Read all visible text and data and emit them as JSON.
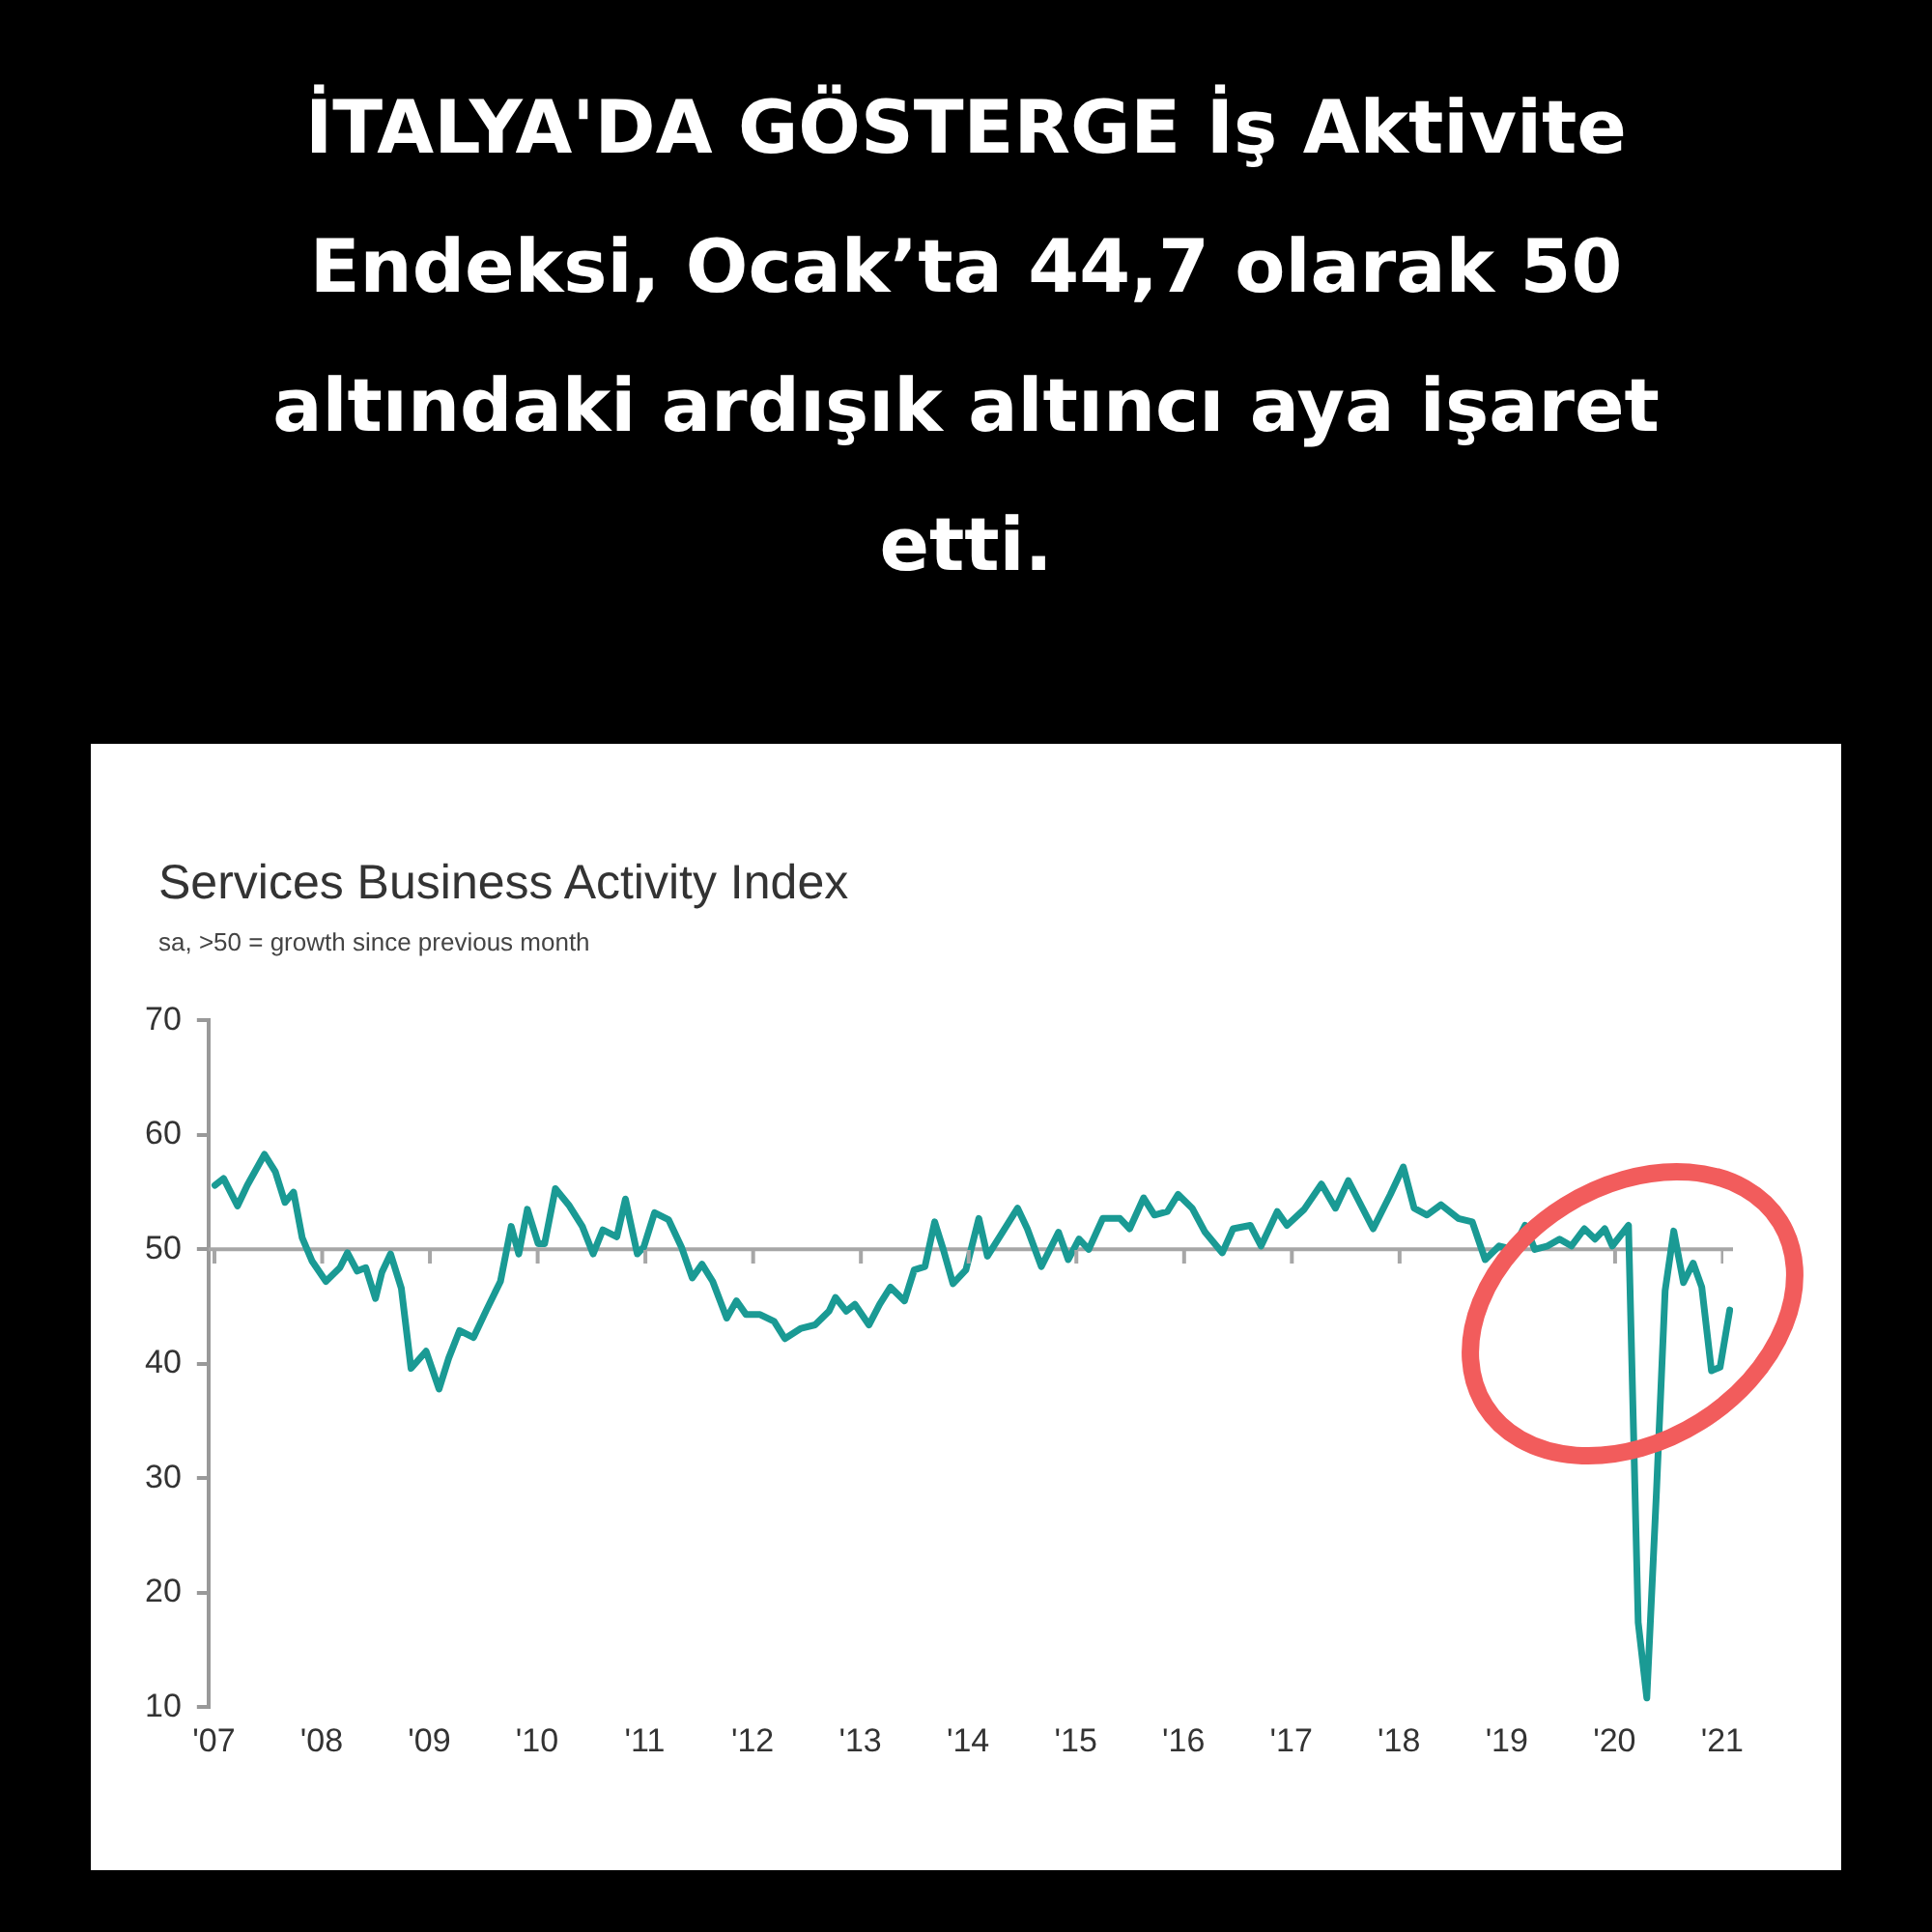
{
  "chart_data": {
    "type": "line",
    "title": "Services Business Activity Index",
    "subtitle": "sa, >50 = growth since previous month",
    "annotations": [
      "İTALYA'DA GÖSTERGE İş Aktivite Endeksi, Ocak’ta 44,7 olarak 50 altındaki ardışık altıncı aya işaret etti."
    ],
    "x": [
      2007.01,
      2007.09,
      2007.22,
      2007.31,
      2007.47,
      2007.57,
      2007.66,
      2007.74,
      2007.82,
      2007.91,
      2008.04,
      2008.17,
      2008.24,
      2008.33,
      2008.41,
      2008.5,
      2008.56,
      2008.64,
      2008.74,
      2008.83,
      2008.97,
      2009.09,
      2009.18,
      2009.28,
      2009.41,
      2009.53,
      2009.66,
      2009.76,
      2009.83,
      2009.91,
      2010.01,
      2010.07,
      2010.17,
      2010.3,
      2010.42,
      2010.52,
      2010.61,
      2010.74,
      2010.82,
      2010.93,
      2010.99,
      2011.09,
      2011.22,
      2011.34,
      2011.44,
      2011.53,
      2011.63,
      2011.76,
      2011.85,
      2011.94,
      2012.07,
      2012.2,
      2012.3,
      2012.45,
      2012.58,
      2012.71,
      2012.77,
      2012.87,
      2012.95,
      2013.08,
      2013.18,
      2013.28,
      2013.41,
      2013.5,
      2013.6,
      2013.69,
      2013.77,
      2013.86,
      2013.98,
      2014.1,
      2014.18,
      2014.3,
      2014.46,
      2014.55,
      2014.68,
      2014.84,
      2014.93,
      2015.03,
      2015.12,
      2015.25,
      2015.41,
      2015.5,
      2015.63,
      2015.73,
      2015.85,
      2015.95,
      2016.08,
      2016.2,
      2016.36,
      2016.46,
      2016.62,
      2016.72,
      2016.87,
      2016.96,
      2017.12,
      2017.28,
      2017.41,
      2017.53,
      2017.76,
      2017.92,
      2018.04,
      2018.14,
      2018.26,
      2018.39,
      2018.55,
      2018.68,
      2018.8,
      2018.93,
      2019.06,
      2019.17,
      2019.26,
      2019.38,
      2019.49,
      2019.6,
      2019.72,
      2019.82,
      2019.91,
      2019.98,
      2020.13,
      2020.22,
      2020.3,
      2020.39,
      2020.47,
      2020.55,
      2020.64,
      2020.73,
      2020.81,
      2020.9,
      2020.98,
      2021.07
    ],
    "series": [
      {
        "color": "#1a9a94",
        "values": [
          55.6,
          56.2,
          53.8,
          55.6,
          58.3,
          56.8,
          54.1,
          55,
          51,
          49,
          47.2,
          48.4,
          49.7,
          48.1,
          48.4,
          45.7,
          48,
          49.6,
          46.6,
          39.6,
          41.1,
          37.8,
          40.5,
          42.9,
          42.3,
          44.7,
          47.2,
          52,
          49.6,
          53.5,
          50.5,
          50.5,
          55.3,
          53.8,
          52,
          49.6,
          51.7,
          51.1,
          54.4,
          49.6,
          50.2,
          53.2,
          52.6,
          50.2,
          47.5,
          48.7,
          47.2,
          44,
          45.5,
          44.3,
          44.3,
          43.7,
          42.2,
          43.1,
          43.4,
          44.6,
          45.8,
          44.6,
          45.2,
          43.4,
          45.2,
          46.7,
          45.5,
          48.2,
          48.5,
          52.4,
          50,
          47,
          48.2,
          52.7,
          49.4,
          51.2,
          53.6,
          51.8,
          48.5,
          51.5,
          49.1,
          50.9,
          50,
          52.7,
          52.7,
          51.8,
          54.5,
          53,
          53.3,
          54.8,
          53.6,
          51.5,
          49.7,
          51.8,
          52.1,
          50.3,
          53.3,
          52.1,
          53.5,
          55.7,
          53.6,
          56,
          51.8,
          54.8,
          57.2,
          53.6,
          53,
          53.9,
          52.7,
          52.4,
          49.1,
          50.3,
          50,
          52.1,
          50,
          50.3,
          50.9,
          50.3,
          51.8,
          50.9,
          51.8,
          50.3,
          52.1,
          17.4,
          10.8,
          28.9,
          46.4,
          51.6,
          47.1,
          48.8,
          46.7,
          39.4,
          39.7,
          44.7
        ]
      }
    ],
    "xlim": [
      2006.95,
      2021.1
    ],
    "xticks": [
      {
        "value": 2007,
        "label": "'07"
      },
      {
        "value": 2008,
        "label": "'08"
      },
      {
        "value": 2009,
        "label": "'09"
      },
      {
        "value": 2010,
        "label": "'10"
      },
      {
        "value": 2011,
        "label": "'11"
      },
      {
        "value": 2012,
        "label": "'12"
      },
      {
        "value": 2013,
        "label": "'13"
      },
      {
        "value": 2014,
        "label": "'14"
      },
      {
        "value": 2015,
        "label": "'15"
      },
      {
        "value": 2016,
        "label": "'16"
      },
      {
        "value": 2017,
        "label": "'17"
      },
      {
        "value": 2018,
        "label": "'18"
      },
      {
        "value": 2019,
        "label": "'19"
      },
      {
        "value": 2020,
        "label": "'20"
      },
      {
        "value": 2021,
        "label": "'21"
      }
    ],
    "ylim": [
      10,
      70
    ],
    "yticks": [
      10,
      20,
      30,
      40,
      50,
      60,
      70
    ],
    "ref_lines": [
      {
        "axis": "y",
        "value": 50,
        "color": "#a6a6a6"
      }
    ],
    "marker": "none",
    "line_style": "solid"
  }
}
